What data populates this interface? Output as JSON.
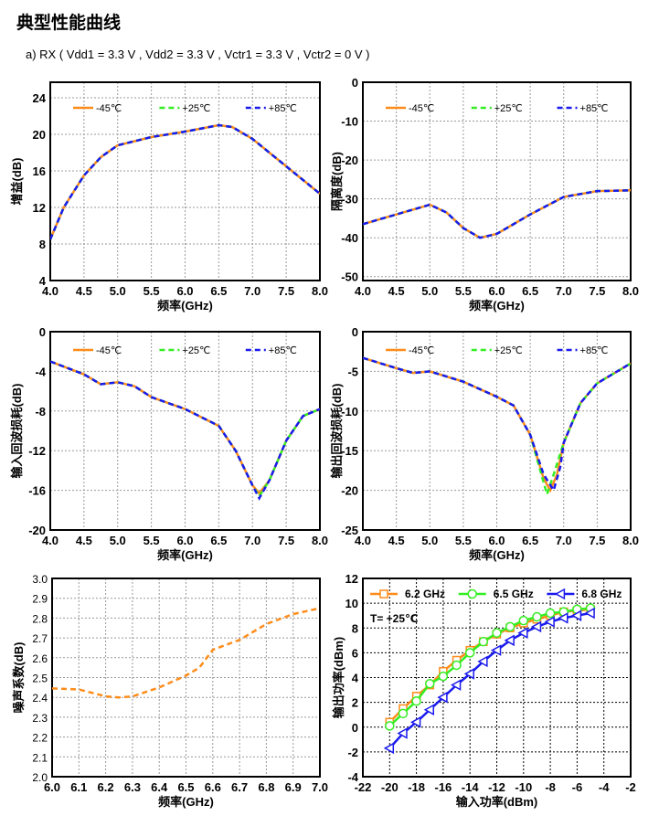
{
  "page": {
    "title": "典型性能曲线",
    "subtitle": "a) RX ( Vdd1 = 3.3 V , Vdd2 = 3.3 V , Vctr1 = 3.3 V , Vctr2 = 0 V )"
  },
  "colors": {
    "orange": "#ff8c1a",
    "green": "#33ee22",
    "blue": "#1a1aee"
  },
  "chart_data": [
    {
      "type": "line",
      "title": "",
      "xlabel": "频率(GHz)",
      "ylabel": "增益(dB)",
      "xlim": [
        4.0,
        8.0
      ],
      "ylim": [
        4,
        25.7
      ],
      "xticks": [
        4.0,
        4.5,
        5.0,
        5.5,
        6.0,
        6.5,
        7.0,
        7.5,
        8.0
      ],
      "yticks": [
        4,
        8,
        12,
        16,
        20,
        24
      ],
      "grid": true,
      "legend": "top",
      "series": [
        {
          "name": "-45℃",
          "color": "#ff8c1a",
          "style": "solid",
          "x": [
            4.0,
            4.2,
            4.5,
            4.75,
            5.0,
            5.5,
            6.0,
            6.5,
            6.7,
            7.0,
            7.5,
            8.0
          ],
          "y": [
            8.5,
            12,
            15.5,
            17.5,
            18.8,
            19.7,
            20.3,
            21,
            20.8,
            19.5,
            16.5,
            13.5
          ]
        },
        {
          "name": "+25℃",
          "color": "#33ee22",
          "style": "dash",
          "x": [
            4.0,
            4.2,
            4.5,
            4.75,
            5.0,
            5.5,
            6.0,
            6.5,
            6.7,
            7.0,
            7.5,
            8.0
          ],
          "y": [
            8.5,
            12,
            15.5,
            17.5,
            18.8,
            19.7,
            20.3,
            21,
            20.8,
            19.5,
            16.5,
            13.5
          ]
        },
        {
          "name": "+85℃",
          "color": "#1a1aee",
          "style": "dash",
          "x": [
            4.0,
            4.2,
            4.5,
            4.75,
            5.0,
            5.5,
            6.0,
            6.5,
            6.7,
            7.0,
            7.5,
            8.0
          ],
          "y": [
            8.5,
            12,
            15.5,
            17.5,
            18.8,
            19.7,
            20.3,
            21,
            20.8,
            19.5,
            16.5,
            13.5
          ]
        }
      ]
    },
    {
      "type": "line",
      "title": "",
      "xlabel": "频率(GHz)",
      "ylabel": "隔离度(dB)",
      "xlim": [
        4.0,
        8.0
      ],
      "ylim": [
        -51,
        0
      ],
      "xticks": [
        4.0,
        4.5,
        5.0,
        5.5,
        6.0,
        6.5,
        7.0,
        7.5,
        8.0
      ],
      "yticks": [
        0,
        -10,
        -20,
        -30,
        -40,
        -50
      ],
      "grid": true,
      "legend": "top",
      "series": [
        {
          "name": "-45℃",
          "color": "#ff8c1a",
          "style": "solid",
          "x": [
            4.0,
            4.5,
            5.0,
            5.25,
            5.5,
            5.75,
            6.0,
            6.5,
            7.0,
            7.5,
            8.0
          ],
          "y": [
            -36.5,
            -34,
            -31.5,
            -33.5,
            -37.5,
            -40,
            -39,
            -34,
            -29.5,
            -28,
            -27.8
          ]
        },
        {
          "name": "+25℃",
          "color": "#33ee22",
          "style": "dash",
          "x": [
            4.0,
            4.5,
            5.0,
            5.25,
            5.5,
            5.75,
            6.0,
            6.5,
            7.0,
            7.5,
            8.0
          ],
          "y": [
            -36.5,
            -34,
            -31.5,
            -33.5,
            -37.5,
            -40,
            -39,
            -34,
            -29.5,
            -28,
            -27.8
          ]
        },
        {
          "name": "+85℃",
          "color": "#1a1aee",
          "style": "dash",
          "x": [
            4.0,
            4.5,
            5.0,
            5.25,
            5.5,
            5.75,
            6.0,
            6.5,
            7.0,
            7.5,
            8.0
          ],
          "y": [
            -36.5,
            -34,
            -31.5,
            -33.5,
            -37.5,
            -40,
            -39,
            -34,
            -29.5,
            -28,
            -27.8
          ]
        }
      ]
    },
    {
      "type": "line",
      "title": "",
      "xlabel": "频率(GHz)",
      "ylabel": "输入回波损耗(dB)",
      "xlim": [
        4.0,
        8.0
      ],
      "ylim": [
        -20,
        0
      ],
      "xticks": [
        4.0,
        4.5,
        5.0,
        5.5,
        6.0,
        6.5,
        7.0,
        7.5,
        8.0
      ],
      "yticks": [
        0,
        -4,
        -8,
        -12,
        -16,
        -20
      ],
      "grid": true,
      "legend": "top",
      "series": [
        {
          "name": "-45℃",
          "color": "#ff8c1a",
          "style": "solid",
          "x": [
            4.0,
            4.5,
            4.75,
            5.0,
            5.25,
            5.5,
            6.0,
            6.5,
            6.75,
            7.0,
            7.1,
            7.25,
            7.5,
            7.75,
            8.0
          ],
          "y": [
            -3,
            -4.3,
            -5.3,
            -5.1,
            -5.5,
            -6.6,
            -7.8,
            -9.5,
            -12,
            -15.5,
            -16.3,
            -15,
            -11,
            -8.5,
            -7.8
          ]
        },
        {
          "name": "+25℃",
          "color": "#33ee22",
          "style": "dash",
          "x": [
            4.0,
            4.5,
            4.75,
            5.0,
            5.25,
            5.5,
            6.0,
            6.5,
            6.75,
            7.0,
            7.1,
            7.25,
            7.5,
            7.75,
            8.0
          ],
          "y": [
            -3,
            -4.3,
            -5.3,
            -5.1,
            -5.5,
            -6.6,
            -7.8,
            -9.5,
            -12,
            -15.5,
            -16.6,
            -15,
            -11,
            -8.5,
            -7.8
          ]
        },
        {
          "name": "+85℃",
          "color": "#1a1aee",
          "style": "dash",
          "x": [
            4.0,
            4.5,
            4.75,
            5.0,
            5.25,
            5.5,
            6.0,
            6.5,
            6.75,
            7.0,
            7.1,
            7.25,
            7.5,
            7.75,
            8.0
          ],
          "y": [
            -3,
            -4.3,
            -5.3,
            -5.1,
            -5.5,
            -6.6,
            -7.8,
            -9.5,
            -12,
            -15.5,
            -16.8,
            -15,
            -11,
            -8.5,
            -7.8
          ]
        }
      ]
    },
    {
      "type": "line",
      "title": "",
      "xlabel": "频率(GHz)",
      "ylabel": "输出回波损耗(dB)",
      "xlim": [
        4.0,
        8.0
      ],
      "ylim": [
        -25,
        0
      ],
      "xticks": [
        4.0,
        4.5,
        5.0,
        5.5,
        6.0,
        6.5,
        7.0,
        7.5,
        8.0
      ],
      "yticks": [
        0,
        -5,
        -10,
        -15,
        -20,
        -25
      ],
      "grid": true,
      "legend": "top",
      "series": [
        {
          "name": "-45℃",
          "color": "#ff8c1a",
          "style": "solid",
          "x": [
            4.0,
            4.5,
            4.75,
            5.0,
            5.5,
            6.0,
            6.25,
            6.5,
            6.7,
            6.8,
            6.9,
            7.0,
            7.25,
            7.5,
            8.0
          ],
          "y": [
            -3.3,
            -4.6,
            -5.2,
            -5.0,
            -6.3,
            -8.2,
            -9.3,
            -13,
            -18.5,
            -20,
            -18,
            -14,
            -9,
            -6.5,
            -4
          ]
        },
        {
          "name": "+25℃",
          "color": "#33ee22",
          "style": "dash",
          "x": [
            4.0,
            4.5,
            4.75,
            5.0,
            5.5,
            6.0,
            6.25,
            6.5,
            6.7,
            6.75,
            6.85,
            7.0,
            7.25,
            7.5,
            8.0
          ],
          "y": [
            -3.3,
            -4.6,
            -5.2,
            -5.0,
            -6.3,
            -8.2,
            -9.3,
            -13,
            -19,
            -20.5,
            -18,
            -14,
            -9,
            -6.5,
            -4
          ]
        },
        {
          "name": "+85℃",
          "color": "#1a1aee",
          "style": "dash",
          "x": [
            4.0,
            4.5,
            4.75,
            5.0,
            5.5,
            6.0,
            6.25,
            6.5,
            6.7,
            6.85,
            6.95,
            7.0,
            7.25,
            7.5,
            8.0
          ],
          "y": [
            -3.3,
            -4.6,
            -5.2,
            -5.0,
            -6.3,
            -8.2,
            -9.3,
            -13,
            -18,
            -20,
            -17,
            -14,
            -9,
            -6.5,
            -4
          ]
        }
      ]
    },
    {
      "type": "line",
      "title": "",
      "xlabel": "频率(GHz)",
      "ylabel": "噪声系数(dB)",
      "xlim": [
        6.0,
        7.0
      ],
      "ylim": [
        2.0,
        3.0
      ],
      "xticks": [
        6.0,
        6.1,
        6.2,
        6.3,
        6.4,
        6.5,
        6.6,
        6.7,
        6.8,
        6.9,
        7.0
      ],
      "yticks": [
        2.0,
        2.1,
        2.2,
        2.3,
        2.4,
        2.5,
        2.6,
        2.7,
        2.8,
        2.9,
        3.0
      ],
      "grid": true,
      "legend": "none",
      "series": [
        {
          "name": "",
          "color": "#ff8c1a",
          "style": "dash",
          "x": [
            6.0,
            6.1,
            6.2,
            6.25,
            6.3,
            6.4,
            6.5,
            6.55,
            6.6,
            6.7,
            6.8,
            6.9,
            7.0
          ],
          "y": [
            2.445,
            2.44,
            2.405,
            2.4,
            2.405,
            2.45,
            2.51,
            2.55,
            2.64,
            2.69,
            2.77,
            2.82,
            2.85
          ]
        }
      ]
    },
    {
      "type": "line",
      "title": "",
      "xlabel": "输入功率(dBm)",
      "ylabel": "输出功率(dBm)",
      "xlim": [
        -22,
        -2
      ],
      "ylim": [
        -4,
        12
      ],
      "xticks": [
        -22,
        -20,
        -18,
        -16,
        -14,
        -12,
        -10,
        -8,
        -6,
        -4,
        -2
      ],
      "yticks": [
        -4,
        -2,
        0,
        2,
        4,
        6,
        8,
        10,
        12
      ],
      "grid": true,
      "legend": "top",
      "annotation": "T= +25℃",
      "series": [
        {
          "name": "6.2 GHz",
          "color": "#ff8c1a",
          "style": "solid",
          "marker": "square",
          "x": [
            -20,
            -19,
            -18,
            -17,
            -16,
            -15,
            -14,
            -13,
            -12,
            -11,
            -10,
            -9,
            -8,
            -7,
            -6,
            -5
          ],
          "y": [
            0.4,
            1.5,
            2.5,
            3.4,
            4.5,
            5.4,
            6.2,
            6.9,
            7.5,
            8.0,
            8.4,
            8.7,
            9.0,
            9.3,
            9.4,
            9.5
          ]
        },
        {
          "name": "6.5 GHz",
          "color": "#33ee22",
          "style": "solid",
          "marker": "circle",
          "x": [
            -20,
            -19,
            -18,
            -17,
            -16,
            -15,
            -14,
            -13,
            -12,
            -11,
            -10,
            -9,
            -8,
            -7,
            -6,
            -5
          ],
          "y": [
            0.1,
            1.1,
            2.1,
            3.5,
            4.1,
            5.0,
            6.0,
            6.9,
            7.6,
            8.1,
            8.6,
            8.9,
            9.2,
            9.3,
            9.5,
            9.6
          ]
        },
        {
          "name": "6.8 GHz",
          "color": "#1a1aee",
          "style": "solid",
          "marker": "triangle-left",
          "x": [
            -20,
            -19,
            -18,
            -17,
            -16,
            -15,
            -14,
            -13,
            -12,
            -11,
            -10,
            -9,
            -8,
            -7,
            -6,
            -5
          ],
          "y": [
            -1.7,
            -0.5,
            0.4,
            1.4,
            2.4,
            3.4,
            4.3,
            5.3,
            6.2,
            7.0,
            7.6,
            8.1,
            8.5,
            8.8,
            9.0,
            9.2
          ]
        }
      ]
    }
  ]
}
